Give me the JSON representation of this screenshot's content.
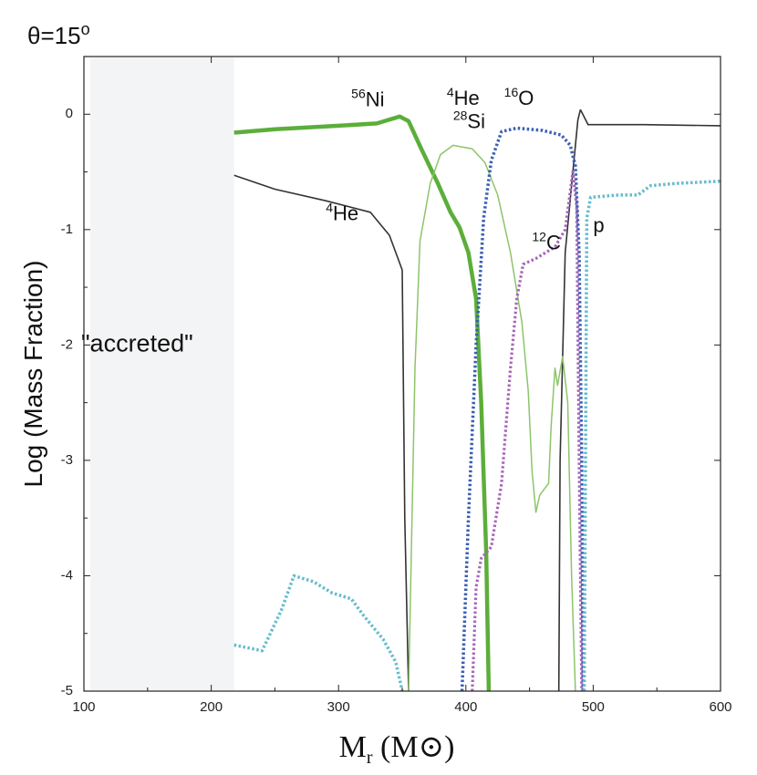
{
  "chart_data": {
    "type": "line",
    "title": {
      "text": "θ=15",
      "sup": "o"
    },
    "xlabel": {
      "main": "M",
      "sub": "r",
      "unit_open": " (M",
      "unit_symbol": "⊙",
      "unit_close": ")"
    },
    "ylabel": "Log (Mass Fraction)",
    "xlim": [
      100,
      600
    ],
    "ylim": [
      -5,
      0.5
    ],
    "xticks": [
      100,
      200,
      300,
      400,
      500,
      600
    ],
    "yticks": [
      0,
      -1,
      -2,
      -3,
      -4,
      -5
    ],
    "region": {
      "label": "\"accreted\"",
      "x_start": 105,
      "x_end": 218,
      "color": "#f3f4f5"
    },
    "series": [
      {
        "name": "4He",
        "label_pre": "4",
        "label_main": "He",
        "label_at": [
          385,
          0.08
        ],
        "color": "#333333",
        "style": "solid",
        "width": 1.6,
        "points": [
          [
            490,
            0.04
          ],
          [
            496,
            -0.09
          ],
          [
            540,
            -0.09
          ],
          [
            600,
            -0.1
          ]
        ]
      },
      {
        "name": "4He (inner)",
        "label_pre": "4",
        "label_main": "He",
        "label_at": [
          290,
          -0.92
        ],
        "color": "#333333",
        "style": "solid",
        "width": 1.6,
        "points": [
          [
            218,
            -0.53
          ],
          [
            250,
            -0.65
          ],
          [
            290,
            -0.75
          ],
          [
            325,
            -0.85
          ],
          [
            340,
            -1.05
          ],
          [
            350,
            -1.35
          ],
          [
            352,
            -3.5
          ],
          [
            355,
            -5
          ]
        ]
      },
      {
        "name": "4He (outer rise)",
        "color": "#333333",
        "style": "solid",
        "width": 1.6,
        "points": [
          [
            473,
            -5
          ],
          [
            474,
            -3.0
          ],
          [
            478,
            -1.2
          ],
          [
            484,
            -0.5
          ],
          [
            488,
            -0.05
          ],
          [
            490,
            0.04
          ]
        ]
      },
      {
        "name": "56Ni",
        "label_pre": "56",
        "label_main": "Ni",
        "label_at": [
          310,
          0.07
        ],
        "color": "#5cae3a",
        "style": "solid",
        "width": 4.5,
        "points": [
          [
            218,
            -0.16
          ],
          [
            250,
            -0.13
          ],
          [
            300,
            -0.1
          ],
          [
            330,
            -0.08
          ],
          [
            348,
            -0.02
          ],
          [
            355,
            -0.06
          ],
          [
            365,
            -0.3
          ],
          [
            378,
            -0.6
          ],
          [
            388,
            -0.85
          ],
          [
            395,
            -0.98
          ],
          [
            402,
            -1.2
          ],
          [
            408,
            -1.6
          ],
          [
            412,
            -2.5
          ],
          [
            416,
            -3.8
          ],
          [
            418,
            -5
          ]
        ]
      },
      {
        "name": "28Si",
        "label_pre": "28",
        "label_main": "Si",
        "label_at": [
          390,
          -0.12
        ],
        "color": "#8dc46a",
        "style": "solid",
        "width": 1.5,
        "points": [
          [
            355,
            -5
          ],
          [
            360,
            -2.2
          ],
          [
            364,
            -1.1
          ],
          [
            372,
            -0.6
          ],
          [
            380,
            -0.35
          ],
          [
            390,
            -0.27
          ],
          [
            405,
            -0.3
          ],
          [
            415,
            -0.42
          ],
          [
            425,
            -0.7
          ],
          [
            435,
            -1.2
          ],
          [
            444,
            -1.8
          ],
          [
            449,
            -2.4
          ],
          [
            452,
            -3.1
          ],
          [
            455,
            -3.45
          ],
          [
            458,
            -3.3
          ],
          [
            465,
            -3.2
          ],
          [
            467,
            -2.7
          ],
          [
            470,
            -2.2
          ],
          [
            472,
            -2.35
          ],
          [
            476,
            -2.1
          ],
          [
            480,
            -2.5
          ],
          [
            483,
            -4.0
          ],
          [
            486,
            -5
          ]
        ]
      },
      {
        "name": "16O",
        "label_pre": "16",
        "label_main": "O",
        "label_at": [
          430,
          0.08
        ],
        "color": "#3b5fb2",
        "style": "dotted",
        "width": 3.5,
        "points": [
          [
            397,
            -5
          ],
          [
            402,
            -3.5
          ],
          [
            408,
            -2.0
          ],
          [
            414,
            -0.9
          ],
          [
            420,
            -0.4
          ],
          [
            428,
            -0.15
          ],
          [
            440,
            -0.12
          ],
          [
            460,
            -0.14
          ],
          [
            475,
            -0.18
          ],
          [
            482,
            -0.27
          ],
          [
            486,
            -0.45
          ],
          [
            489,
            -1.2
          ],
          [
            491,
            -3.0
          ],
          [
            492,
            -5
          ]
        ]
      },
      {
        "name": "12C",
        "label_pre": "12",
        "label_main": "C",
        "label_at": [
          452,
          -1.17
        ],
        "color": "#a766b8",
        "style": "dotted",
        "width": 3.2,
        "points": [
          [
            405,
            -5
          ],
          [
            408,
            -4.1
          ],
          [
            412,
            -3.85
          ],
          [
            420,
            -3.75
          ],
          [
            428,
            -3.2
          ],
          [
            435,
            -2.2
          ],
          [
            440,
            -1.6
          ],
          [
            445,
            -1.3
          ],
          [
            455,
            -1.25
          ],
          [
            470,
            -1.15
          ],
          [
            478,
            -1.0
          ],
          [
            484,
            -0.5
          ],
          [
            487,
            -0.8
          ],
          [
            489,
            -3.0
          ],
          [
            491,
            -5
          ]
        ]
      },
      {
        "name": "p",
        "label_pre": "",
        "label_main": "p",
        "label_at": [
          500,
          -1.02
        ],
        "color": "#64bccc",
        "style": "dotted",
        "width": 3.5,
        "points": [
          [
            218,
            -4.6
          ],
          [
            240,
            -4.65
          ],
          [
            255,
            -4.3
          ],
          [
            265,
            -4.0
          ],
          [
            280,
            -4.05
          ],
          [
            295,
            -4.15
          ],
          [
            310,
            -4.2
          ],
          [
            320,
            -4.35
          ],
          [
            335,
            -4.55
          ],
          [
            345,
            -4.75
          ],
          [
            350,
            -5
          ],
          null,
          [
            493,
            -5
          ],
          [
            495,
            -0.9
          ],
          [
            498,
            -0.72
          ],
          [
            520,
            -0.7
          ],
          [
            535,
            -0.7
          ],
          [
            545,
            -0.62
          ],
          [
            565,
            -0.6
          ],
          [
            600,
            -0.58
          ]
        ]
      }
    ]
  }
}
